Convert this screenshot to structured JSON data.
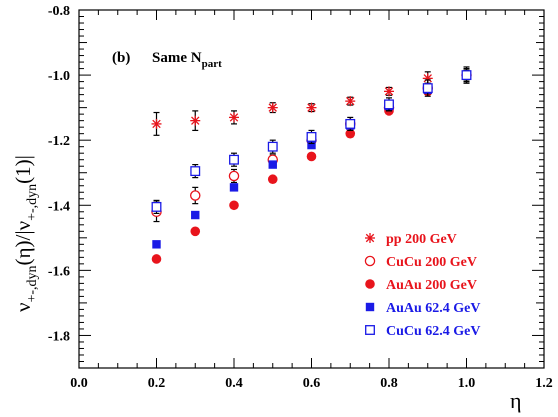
{
  "chart_data": {
    "type": "scatter",
    "panel_label": "(b)",
    "annotation": {
      "main": "Same N",
      "sub": "part"
    },
    "xlabel": "η",
    "ylabel": {
      "nu": "ν",
      "sub1": "+-,dyn",
      "mid": "(η)/|ν",
      "sub2": "+-,dyn",
      "tail": "(1)|"
    },
    "xlim": [
      0.0,
      1.2
    ],
    "ylim": [
      -1.9,
      -0.8
    ],
    "xticks": [
      "0.0",
      "0.2",
      "0.4",
      "0.6",
      "0.8",
      "1.0",
      "1.2"
    ],
    "yticks": [
      "-0.8",
      "-1.0",
      "-1.2",
      "-1.4",
      "-1.6",
      "-1.8"
    ],
    "legend_position": "bottom-right",
    "series": [
      {
        "name": "pp 200 GeV",
        "marker": "asterisk",
        "color": "#e8141c",
        "x": [
          0.2,
          0.3,
          0.4,
          0.5,
          0.6,
          0.7,
          0.8,
          0.9,
          1.0
        ],
        "y": [
          -1.15,
          -1.14,
          -1.13,
          -1.1,
          -1.1,
          -1.08,
          -1.05,
          -1.01,
          -1.0
        ],
        "err": [
          0.035,
          0.03,
          0.02,
          0.015,
          0.012,
          0.012,
          0.012,
          0.02,
          0.02
        ]
      },
      {
        "name": "CuCu 200 GeV",
        "marker": "open-circle",
        "color": "#e8141c",
        "x": [
          0.2,
          0.3,
          0.4,
          0.5,
          0.6,
          0.7,
          0.8,
          0.9,
          1.0
        ],
        "y": [
          -1.42,
          -1.37,
          -1.31,
          -1.26,
          -1.2,
          -1.15,
          -1.1,
          -1.04,
          -1.0
        ],
        "err": [
          0.03,
          0.025,
          0.02,
          0.015,
          0.015,
          0.012,
          0.012,
          0.015,
          0.02
        ]
      },
      {
        "name": "AuAu 200 GeV",
        "marker": "filled-circle",
        "color": "#e8141c",
        "x": [
          0.2,
          0.3,
          0.4,
          0.5,
          0.6,
          0.7,
          0.8,
          0.9,
          1.0
        ],
        "y": [
          -1.565,
          -1.48,
          -1.4,
          -1.32,
          -1.25,
          -1.18,
          -1.11,
          -1.05,
          -1.0
        ],
        "err": [
          0,
          0,
          0,
          0,
          0,
          0,
          0,
          0,
          0
        ]
      },
      {
        "name": "AuAu 62.4 GeV",
        "marker": "filled-square",
        "color": "#1a1ae6",
        "x": [
          0.2,
          0.3,
          0.4,
          0.5,
          0.6,
          0.7,
          0.8,
          0.9,
          1.0
        ],
        "y": [
          -1.52,
          -1.43,
          -1.345,
          -1.275,
          -1.215,
          -1.155,
          -1.095,
          -1.045,
          -1.0
        ],
        "err": [
          0,
          0,
          0,
          0.01,
          0.01,
          0.01,
          0.012,
          0.012,
          0.015
        ]
      },
      {
        "name": "CuCu 62.4 GeV",
        "marker": "open-square",
        "color": "#1a1ae6",
        "x": [
          0.2,
          0.3,
          0.4,
          0.5,
          0.6,
          0.7,
          0.8,
          0.9,
          1.0
        ],
        "y": [
          -1.405,
          -1.295,
          -1.26,
          -1.22,
          -1.19,
          -1.15,
          -1.09,
          -1.04,
          -1.0
        ],
        "err": [
          0.02,
          0.02,
          0.02,
          0.02,
          0.02,
          0.02,
          0.02,
          0.025,
          0.025
        ]
      }
    ]
  }
}
